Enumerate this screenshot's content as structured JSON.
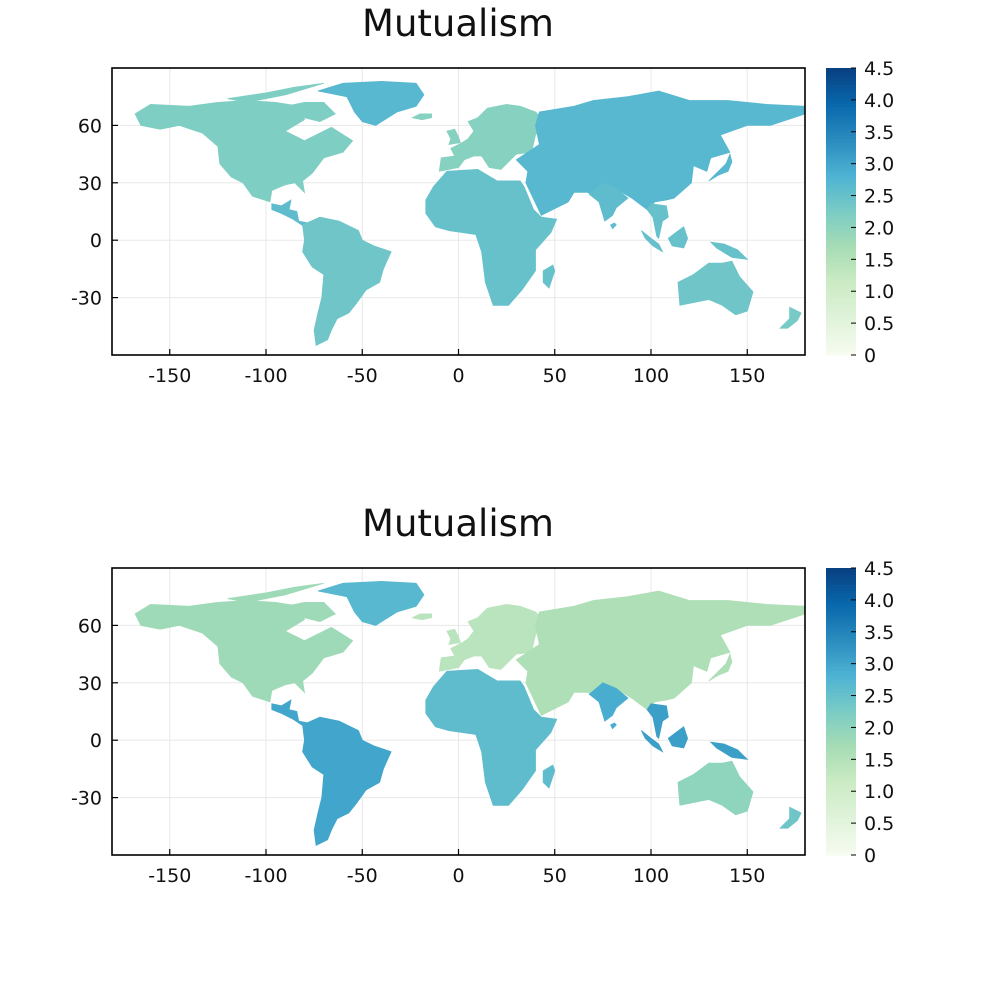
{
  "chart_data": [
    {
      "type": "heatmap",
      "title": "Mutualism",
      "xlim": [
        -180,
        180
      ],
      "ylim": [
        -60,
        90
      ],
      "x_ticks": [
        "-150",
        "-100",
        "-50",
        "0",
        "50",
        "100",
        "150"
      ],
      "y_ticks": [
        "60",
        "30",
        "0",
        "-30"
      ],
      "colorbar": {
        "min": 0,
        "max": 4.5,
        "ticks": [
          "4.5",
          "4.0",
          "3.5",
          "3.0",
          "2.5",
          "2.0",
          "1.5",
          "1.0",
          "0.5",
          "0"
        ]
      },
      "grid": true,
      "regions": [
        {
          "name": "North America",
          "value": 2.2
        },
        {
          "name": "Central America",
          "value": 2.6
        },
        {
          "name": "South America",
          "value": 2.4
        },
        {
          "name": "Greenland",
          "value": 2.7
        },
        {
          "name": "Europe",
          "value": 2.1
        },
        {
          "name": "Africa",
          "value": 2.5
        },
        {
          "name": "Asia",
          "value": 2.7
        },
        {
          "name": "India",
          "value": 2.6
        },
        {
          "name": "Southeast Asia",
          "value": 2.5
        },
        {
          "name": "Australia",
          "value": 2.4
        },
        {
          "name": "New Zealand",
          "value": 2.3
        }
      ]
    },
    {
      "type": "heatmap",
      "title": "Mutualism",
      "xlim": [
        -180,
        180
      ],
      "ylim": [
        -60,
        90
      ],
      "x_ticks": [
        "-150",
        "-100",
        "-50",
        "0",
        "50",
        "100",
        "150"
      ],
      "y_ticks": [
        "60",
        "30",
        "0",
        "-30"
      ],
      "colorbar": {
        "min": 0,
        "max": 4.5,
        "ticks": [
          "4.5",
          "4.0",
          "3.5",
          "3.0",
          "2.5",
          "2.0",
          "1.5",
          "1.0",
          "0.5",
          "0"
        ]
      },
      "grid": true,
      "regions": [
        {
          "name": "North America",
          "value": 1.8
        },
        {
          "name": "Central America",
          "value": 3.0
        },
        {
          "name": "South America",
          "value": 3.0
        },
        {
          "name": "Greenland",
          "value": 2.7
        },
        {
          "name": "Europe",
          "value": 1.4
        },
        {
          "name": "Africa",
          "value": 2.6
        },
        {
          "name": "Asia",
          "value": 1.6
        },
        {
          "name": "India",
          "value": 2.9
        },
        {
          "name": "Southeast Asia",
          "value": 3.1
        },
        {
          "name": "Australia",
          "value": 2.0
        },
        {
          "name": "New Zealand",
          "value": 2.4
        }
      ]
    }
  ],
  "colormap": [
    "#f7fcf0",
    "#e0f3db",
    "#ccebc5",
    "#a8ddb5",
    "#7bccc4",
    "#4eb3d3",
    "#2b8cbe",
    "#0868ac",
    "#084081"
  ]
}
